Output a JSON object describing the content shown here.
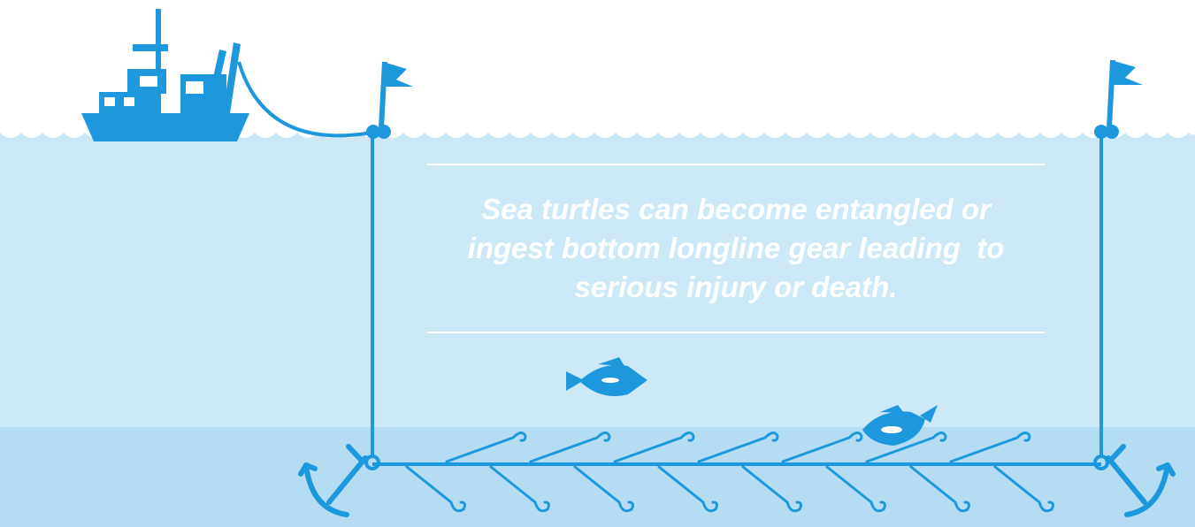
{
  "caption": {
    "lines": [
      "Sea turtles can become entangled or",
      "ingest bottom longline gear leading  to",
      "serious injury or death."
    ]
  },
  "colors": {
    "sky": "#ffffff",
    "water": "#cde9f7",
    "seabed_band": "#b4dcf2",
    "gear_blue": "#1e98dc",
    "text": "#ffffff"
  },
  "icons": [
    "boat-icon",
    "flag-icon",
    "buoy-icon",
    "anchor-icon",
    "fish-icon",
    "turtle-icon",
    "hook-icon"
  ]
}
